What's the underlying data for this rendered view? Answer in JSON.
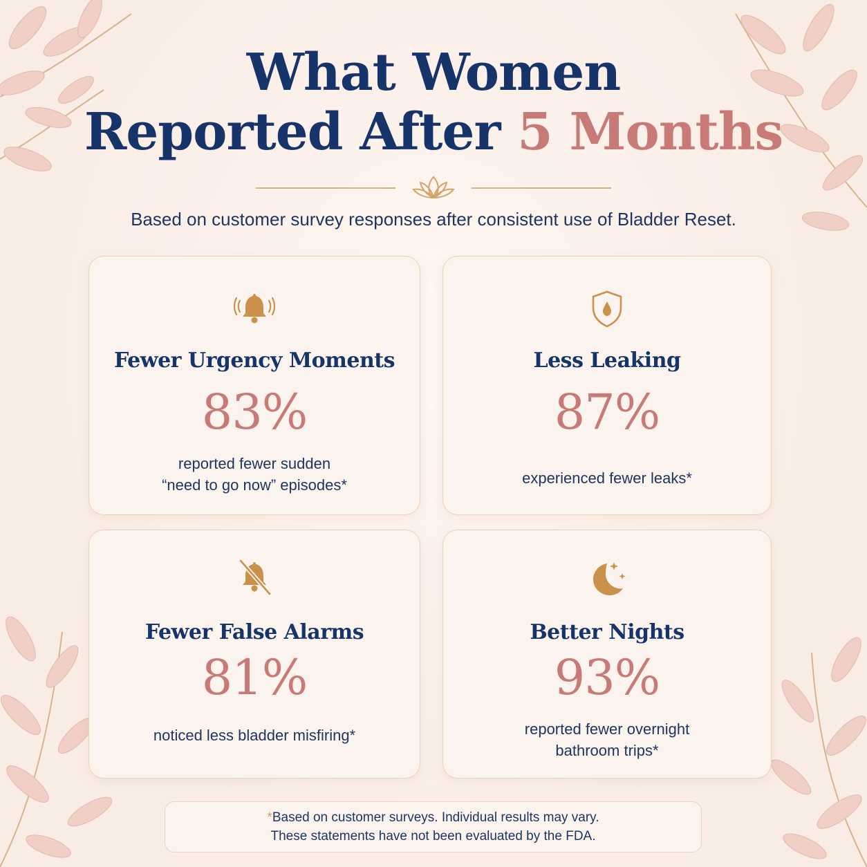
{
  "header": {
    "title_line1": "What Women",
    "title_line2_main": "Reported After",
    "title_line2_accent": "5 Months",
    "subtitle": "Based on customer survey responses after consistent use of Bladder Reset."
  },
  "cards": [
    {
      "icon": "ringing-bell-icon",
      "title": "Fewer Urgency Moments",
      "percent": "83%",
      "desc_lines": [
        "reported fewer sudden",
        "“need to go now” episodes*"
      ]
    },
    {
      "icon": "shield-drop-icon",
      "title": "Less Leaking",
      "percent": "87%",
      "desc_lines": [
        "experienced fewer leaks*"
      ]
    },
    {
      "icon": "bell-off-icon",
      "title": "Fewer False Alarms",
      "percent": "81%",
      "desc_lines": [
        "noticed less bladder misfiring*"
      ]
    },
    {
      "icon": "moon-stars-icon",
      "title": "Better Nights",
      "percent": "93%",
      "desc_lines": [
        "reported fewer overnight",
        "bathroom trips*"
      ]
    }
  ],
  "footer": {
    "star": "*",
    "line1": "Based on customer surveys. Individual results may vary.",
    "line2": "These statements have not been evaluated by the FDA."
  },
  "colors": {
    "navy": "#16336a",
    "rose": "#c77a76",
    "gold": "#c9914a",
    "background": "#f9ece4"
  }
}
